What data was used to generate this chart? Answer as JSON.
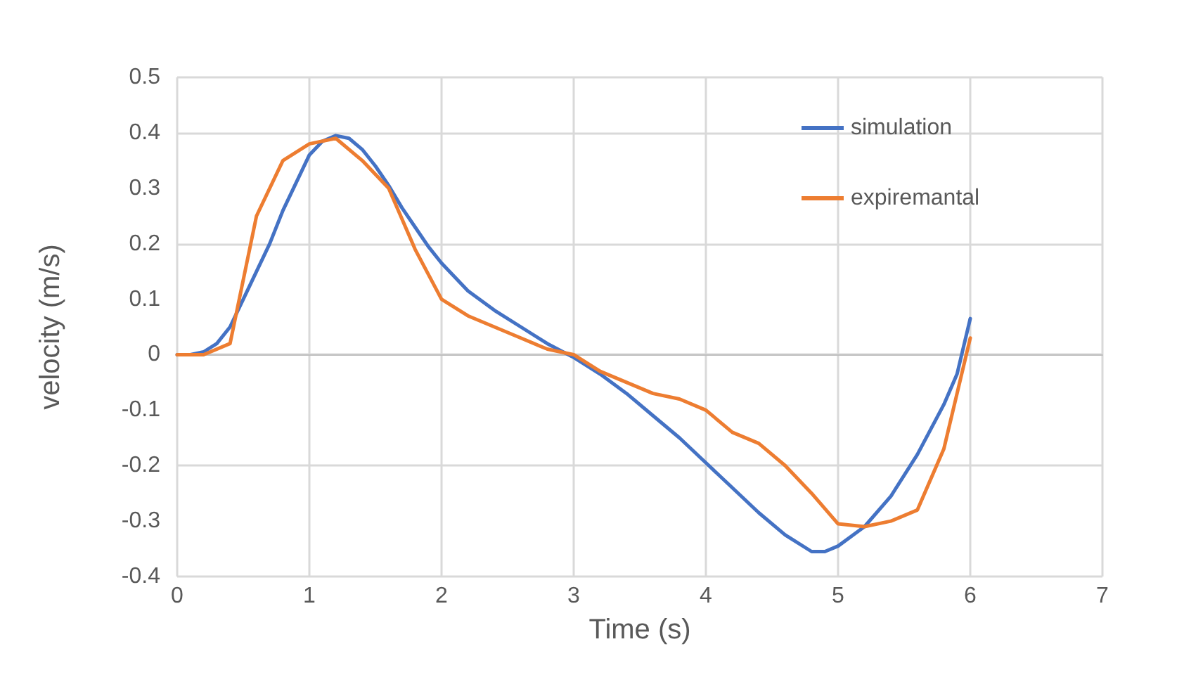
{
  "chart_data": {
    "type": "line",
    "xlabel": "Time (s)",
    "ylabel": "velocity (m/s)",
    "xlim": [
      0,
      7
    ],
    "xticks": [
      0,
      1,
      2,
      3,
      4,
      5,
      6,
      7
    ],
    "ylim": [
      -0.4,
      0.5
    ],
    "yticks": [
      -0.4,
      -0.3,
      -0.2,
      -0.1,
      0,
      0.1,
      0.2,
      0.3,
      0.4,
      0.5
    ],
    "grid": true,
    "legend": "top right",
    "marker": "none",
    "line_style": "solid",
    "series": [
      {
        "name": "simulation",
        "color": "#4472c4",
        "x": [
          0,
          0.1,
          0.2,
          0.3,
          0.4,
          0.5,
          0.6,
          0.7,
          0.8,
          0.9,
          1.0,
          1.1,
          1.2,
          1.3,
          1.4,
          1.5,
          1.6,
          1.7,
          1.8,
          1.9,
          2.0,
          2.2,
          2.4,
          2.6,
          2.8,
          3.0,
          3.2,
          3.4,
          3.6,
          3.8,
          4.0,
          4.2,
          4.4,
          4.6,
          4.8,
          4.9,
          5.0,
          5.2,
          5.4,
          5.6,
          5.8,
          5.9,
          6.0
        ],
        "values": [
          0,
          0,
          0.005,
          0.02,
          0.05,
          0.1,
          0.15,
          0.2,
          0.26,
          0.31,
          0.36,
          0.385,
          0.395,
          0.39,
          0.37,
          0.34,
          0.305,
          0.265,
          0.23,
          0.195,
          0.165,
          0.115,
          0.08,
          0.05,
          0.02,
          -0.005,
          -0.035,
          -0.07,
          -0.11,
          -0.15,
          -0.195,
          -0.24,
          -0.285,
          -0.325,
          -0.355,
          -0.355,
          -0.345,
          -0.31,
          -0.255,
          -0.18,
          -0.09,
          -0.035,
          0.065
        ]
      },
      {
        "name": "expiremantal",
        "color": "#ed7d31",
        "x": [
          0,
          0.2,
          0.4,
          0.6,
          0.8,
          1.0,
          1.2,
          1.4,
          1.6,
          1.8,
          2.0,
          2.2,
          2.4,
          2.6,
          2.8,
          3.0,
          3.2,
          3.4,
          3.6,
          3.8,
          4.0,
          4.2,
          4.4,
          4.6,
          4.8,
          5.0,
          5.2,
          5.4,
          5.6,
          5.8,
          6.0
        ],
        "values": [
          0,
          0,
          0.02,
          0.25,
          0.35,
          0.38,
          0.39,
          0.35,
          0.3,
          0.19,
          0.1,
          0.07,
          0.05,
          0.03,
          0.01,
          0,
          -0.03,
          -0.05,
          -0.07,
          -0.08,
          -0.1,
          -0.14,
          -0.16,
          -0.2,
          -0.25,
          -0.305,
          -0.31,
          -0.3,
          -0.28,
          -0.17,
          0.03
        ]
      }
    ]
  }
}
